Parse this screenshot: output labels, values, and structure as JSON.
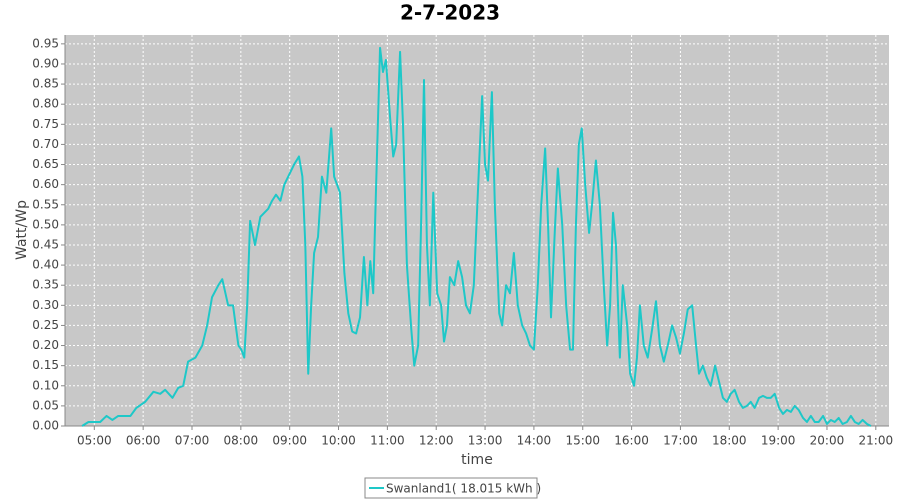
{
  "chart_data": {
    "type": "line",
    "title": "2-7-2023",
    "x_label": "time",
    "y_label": "Watt/Wp",
    "x": [
      4.75,
      4.88,
      5.12,
      5.25,
      5.37,
      5.49,
      5.74,
      5.86,
      6.04,
      6.21,
      6.35,
      6.45,
      6.6,
      6.72,
      6.82,
      6.92,
      7.07,
      7.21,
      7.31,
      7.41,
      7.54,
      7.62,
      7.74,
      7.84,
      7.95,
      8.01,
      8.07,
      8.13,
      8.19,
      8.29,
      8.4,
      8.56,
      8.64,
      8.72,
      8.81,
      8.89,
      9.01,
      9.09,
      9.19,
      9.26,
      9.32,
      9.38,
      9.44,
      9.5,
      9.58,
      9.66,
      9.75,
      9.85,
      9.91,
      10.03,
      10.12,
      10.2,
      10.28,
      10.36,
      10.44,
      10.52,
      10.59,
      10.65,
      10.71,
      10.77,
      10.85,
      10.91,
      10.97,
      11.06,
      11.12,
      11.18,
      11.26,
      11.32,
      11.4,
      11.49,
      11.55,
      11.63,
      11.69,
      11.75,
      11.81,
      11.87,
      11.94,
      12.02,
      12.1,
      12.16,
      12.22,
      12.28,
      12.37,
      12.45,
      12.53,
      12.61,
      12.69,
      12.77,
      12.86,
      12.94,
      13.0,
      13.06,
      13.14,
      13.2,
      13.29,
      13.35,
      13.43,
      13.51,
      13.59,
      13.67,
      13.76,
      13.84,
      13.92,
      14.0,
      14.08,
      14.15,
      14.23,
      14.29,
      14.35,
      14.43,
      14.49,
      14.58,
      14.66,
      14.74,
      14.8,
      14.86,
      14.92,
      14.98,
      15.05,
      15.13,
      15.19,
      15.27,
      15.35,
      15.43,
      15.5,
      15.56,
      15.62,
      15.68,
      15.76,
      15.82,
      15.91,
      15.97,
      16.05,
      16.11,
      16.17,
      16.25,
      16.33,
      16.42,
      16.5,
      16.58,
      16.66,
      16.74,
      16.83,
      16.91,
      16.99,
      17.07,
      17.15,
      17.24,
      17.32,
      17.38,
      17.46,
      17.54,
      17.62,
      17.71,
      17.79,
      17.87,
      17.95,
      18.03,
      18.11,
      18.2,
      18.28,
      18.36,
      18.44,
      18.52,
      18.61,
      18.69,
      18.77,
      18.85,
      18.93,
      19.02,
      19.1,
      19.18,
      19.26,
      19.34,
      19.42,
      19.51,
      19.59,
      19.67,
      19.75,
      19.83,
      19.92,
      20.0,
      20.08,
      20.16,
      20.24,
      20.32,
      20.41,
      20.49,
      20.57,
      20.65,
      20.73,
      20.82,
      20.9
    ],
    "series": [
      {
        "name": "Swanland1( 18.015 kWh )",
        "color": "#1ec8c8",
        "values": [
          0,
          0.01,
          0.01,
          0.025,
          0.015,
          0.025,
          0.025,
          0.045,
          0.06,
          0.085,
          0.08,
          0.09,
          0.07,
          0.095,
          0.1,
          0.16,
          0.17,
          0.2,
          0.25,
          0.32,
          0.35,
          0.365,
          0.3,
          0.3,
          0.2,
          0.19,
          0.17,
          0.3,
          0.51,
          0.45,
          0.52,
          0.54,
          0.56,
          0.575,
          0.56,
          0.6,
          0.63,
          0.65,
          0.67,
          0.62,
          0.45,
          0.13,
          0.3,
          0.43,
          0.47,
          0.62,
          0.58,
          0.74,
          0.62,
          0.58,
          0.38,
          0.28,
          0.235,
          0.23,
          0.27,
          0.42,
          0.3,
          0.41,
          0.33,
          0.6,
          0.94,
          0.88,
          0.91,
          0.76,
          0.67,
          0.7,
          0.93,
          0.75,
          0.4,
          0.24,
          0.15,
          0.2,
          0.5,
          0.86,
          0.45,
          0.3,
          0.58,
          0.33,
          0.3,
          0.21,
          0.25,
          0.37,
          0.35,
          0.41,
          0.37,
          0.3,
          0.28,
          0.35,
          0.6,
          0.82,
          0.65,
          0.61,
          0.83,
          0.55,
          0.28,
          0.25,
          0.35,
          0.33,
          0.43,
          0.3,
          0.25,
          0.23,
          0.2,
          0.19,
          0.35,
          0.55,
          0.69,
          0.5,
          0.27,
          0.49,
          0.64,
          0.5,
          0.3,
          0.19,
          0.19,
          0.5,
          0.7,
          0.74,
          0.6,
          0.48,
          0.55,
          0.66,
          0.55,
          0.35,
          0.2,
          0.3,
          0.53,
          0.45,
          0.17,
          0.35,
          0.25,
          0.13,
          0.1,
          0.17,
          0.3,
          0.2,
          0.17,
          0.24,
          0.31,
          0.2,
          0.16,
          0.2,
          0.25,
          0.22,
          0.18,
          0.23,
          0.29,
          0.3,
          0.2,
          0.13,
          0.15,
          0.12,
          0.1,
          0.15,
          0.11,
          0.07,
          0.06,
          0.08,
          0.09,
          0.06,
          0.045,
          0.05,
          0.06,
          0.045,
          0.07,
          0.075,
          0.07,
          0.07,
          0.08,
          0.045,
          0.03,
          0.04,
          0.035,
          0.05,
          0.04,
          0.02,
          0.01,
          0.025,
          0.01,
          0.01,
          0.025,
          0.005,
          0.015,
          0.01,
          0.02,
          0.005,
          0.01,
          0.025,
          0.01,
          0.005,
          0.015,
          0.005,
          0
        ]
      }
    ],
    "xlim": [
      4.4,
      21.27
    ],
    "ylim": [
      0,
      0.972
    ],
    "xticks": [
      {
        "value": 5,
        "label": "05:00"
      },
      {
        "value": 6,
        "label": "06:00"
      },
      {
        "value": 7,
        "label": "07:00"
      },
      {
        "value": 8,
        "label": "08:00"
      },
      {
        "value": 9,
        "label": "09:00"
      },
      {
        "value": 10,
        "label": "10:00"
      },
      {
        "value": 11,
        "label": "11:00"
      },
      {
        "value": 12,
        "label": "12:00"
      },
      {
        "value": 13,
        "label": "13:00"
      },
      {
        "value": 14,
        "label": "14:00"
      },
      {
        "value": 15,
        "label": "15:00"
      },
      {
        "value": 16,
        "label": "16:00"
      },
      {
        "value": 17,
        "label": "17:00"
      },
      {
        "value": 18,
        "label": "18:00"
      },
      {
        "value": 19,
        "label": "19:00"
      },
      {
        "value": 20,
        "label": "20:00"
      },
      {
        "value": 21,
        "label": "21:00"
      }
    ],
    "yticks": [
      {
        "value": 0,
        "label": "0.00"
      },
      {
        "value": 0.05,
        "label": "0.05"
      },
      {
        "value": 0.1,
        "label": "0.10"
      },
      {
        "value": 0.15,
        "label": "0.15"
      },
      {
        "value": 0.2,
        "label": "0.20"
      },
      {
        "value": 0.25,
        "label": "0.25"
      },
      {
        "value": 0.3,
        "label": "0.30"
      },
      {
        "value": 0.35,
        "label": "0.35"
      },
      {
        "value": 0.4,
        "label": "0.40"
      },
      {
        "value": 0.45,
        "label": "0.45"
      },
      {
        "value": 0.5,
        "label": "0.50"
      },
      {
        "value": 0.55,
        "label": "0.55"
      },
      {
        "value": 0.6,
        "label": "0.60"
      },
      {
        "value": 0.65,
        "label": "0.65"
      },
      {
        "value": 0.7,
        "label": "0.70"
      },
      {
        "value": 0.75,
        "label": "0.75"
      },
      {
        "value": 0.8,
        "label": "0.80"
      },
      {
        "value": 0.85,
        "label": "0.85"
      },
      {
        "value": 0.9,
        "label": "0.90"
      },
      {
        "value": 0.95,
        "label": "0.95"
      }
    ],
    "grid": true,
    "legend": "bottom"
  }
}
